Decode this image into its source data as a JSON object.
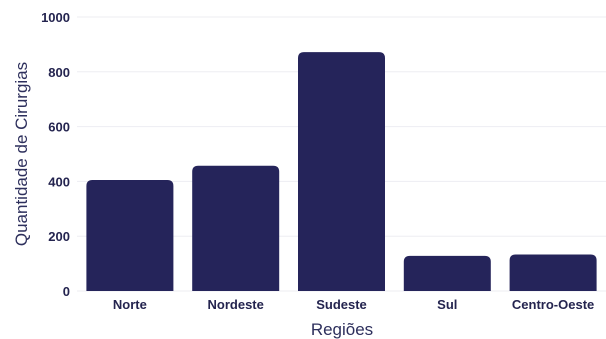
{
  "chart_data": {
    "type": "bar",
    "categories": [
      "Norte",
      "Nordeste",
      "Sudeste",
      "Sul",
      "Centro-Oeste"
    ],
    "values": [
      405,
      457,
      872,
      128,
      133
    ],
    "xlabel": "Regiões",
    "ylabel": "Quantidade de Cirurgias",
    "ylim": [
      0,
      1000
    ],
    "yticks": [
      "0",
      "200",
      "400",
      "600",
      "800",
      "1000"
    ],
    "grid": true,
    "bar_color": "#25245a"
  }
}
